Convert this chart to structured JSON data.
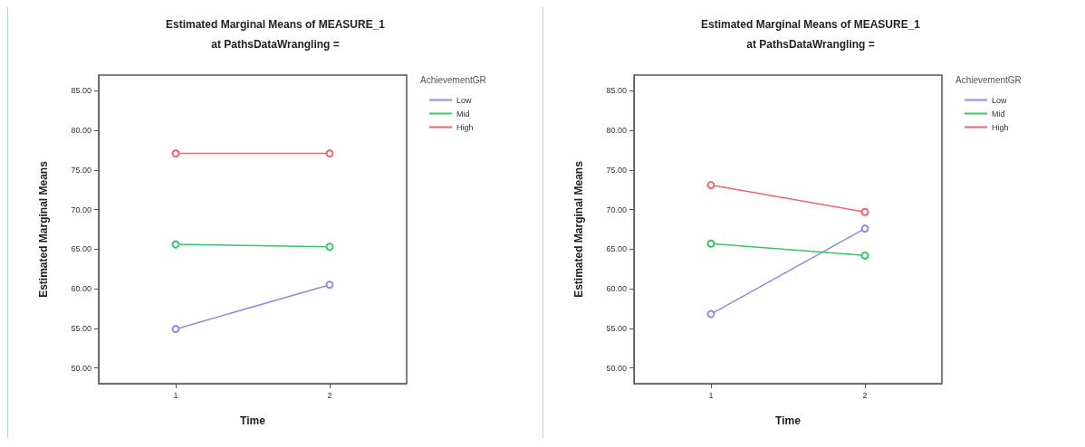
{
  "chart_data": [
    {
      "type": "line",
      "title": "Estimated Marginal Means of MEASURE_1",
      "subtitle": "at PathsDataWrangling =",
      "xlabel": "Time",
      "ylabel": "Estimated Marginal Means",
      "legend_title": "AchievementGR",
      "legend": "top right",
      "grid": false,
      "marker": "circle",
      "line_style": "solid",
      "categories": [
        "1",
        "2"
      ],
      "ylim": [
        48,
        87
      ],
      "yticks": [
        {
          "value": 50,
          "label": "50.00"
        },
        {
          "value": 55,
          "label": "55.00"
        },
        {
          "value": 60,
          "label": "60.00"
        },
        {
          "value": 65,
          "label": "65.00"
        },
        {
          "value": 70,
          "label": "70.00"
        },
        {
          "value": 75,
          "label": "75.00"
        },
        {
          "value": 80,
          "label": "80.00"
        },
        {
          "value": 85,
          "label": "85.00"
        }
      ],
      "series": [
        {
          "name": "Low",
          "color": "#8c8fd9",
          "values": [
            54.9,
            60.5
          ]
        },
        {
          "name": "Mid",
          "color": "#3cc46a",
          "values": [
            65.6,
            65.3
          ]
        },
        {
          "name": "High",
          "color": "#f0656e",
          "values": [
            77.1,
            77.1
          ]
        }
      ]
    },
    {
      "type": "line",
      "title": "Estimated Marginal Means of MEASURE_1",
      "subtitle": "at PathsDataWrangling =",
      "xlabel": "Time",
      "ylabel": "Estimated Marginal Means",
      "legend_title": "AchievementGR",
      "legend": "top right",
      "grid": false,
      "marker": "circle",
      "line_style": "solid",
      "categories": [
        "1",
        "2"
      ],
      "ylim": [
        48,
        87
      ],
      "yticks": [
        {
          "value": 50,
          "label": "50.00"
        },
        {
          "value": 55,
          "label": "55.00"
        },
        {
          "value": 60,
          "label": "60.00"
        },
        {
          "value": 65,
          "label": "65.00"
        },
        {
          "value": 70,
          "label": "70.00"
        },
        {
          "value": 75,
          "label": "75.00"
        },
        {
          "value": 80,
          "label": "80.00"
        },
        {
          "value": 85,
          "label": "85.00"
        }
      ],
      "series": [
        {
          "name": "Low",
          "color": "#8c8fd9",
          "values": [
            56.8,
            67.6
          ]
        },
        {
          "name": "Mid",
          "color": "#3cc46a",
          "values": [
            65.7,
            64.2
          ]
        },
        {
          "name": "High",
          "color": "#f0656e",
          "values": [
            73.1,
            69.7
          ]
        }
      ]
    }
  ]
}
